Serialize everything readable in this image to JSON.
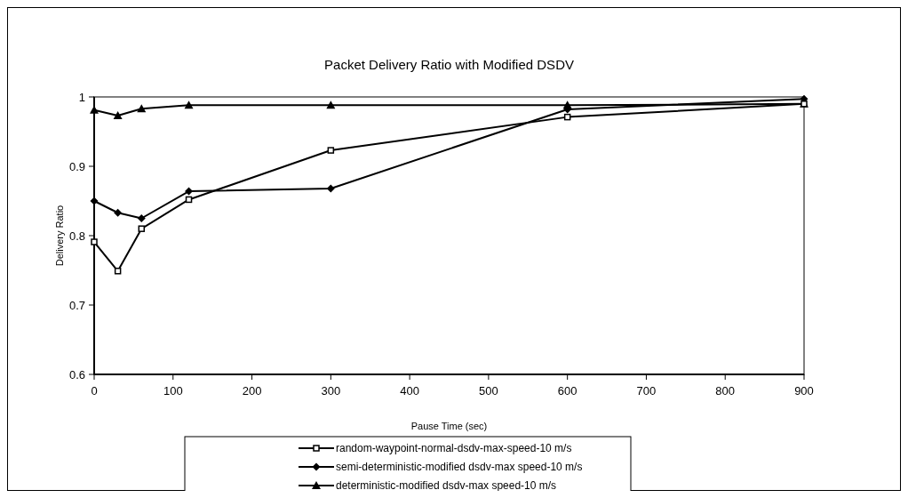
{
  "chart_data": {
    "type": "line",
    "title": "Packet Delivery Ratio with Modified DSDV",
    "xlabel": "Pause Time (sec)",
    "ylabel": "Delivery Ratio",
    "x": [
      0,
      30,
      60,
      120,
      300,
      600,
      900
    ],
    "series": [
      {
        "name": "random-waypoint-normal-dsdv-max-speed-10 m/s",
        "color": "#000000",
        "marker": "square",
        "values": [
          0.791,
          0.749,
          0.81,
          0.852,
          0.923,
          0.971,
          0.99
        ]
      },
      {
        "name": "semi-deterministic-modified dsdv-max speed-10 m/s",
        "color": "#000000",
        "marker": "diamond",
        "values": [
          0.85,
          0.833,
          0.825,
          0.864,
          0.868,
          0.982,
          0.997
        ]
      },
      {
        "name": "deterministic-modified dsdv-max speed-10 m/s",
        "color": "#000000",
        "marker": "triangle",
        "values": [
          0.981,
          0.973,
          0.983,
          0.988,
          0.988,
          0.988,
          0.99
        ]
      }
    ],
    "xlim": [
      0,
      900
    ],
    "xticks": [
      0,
      100,
      200,
      300,
      400,
      500,
      600,
      700,
      800,
      900
    ],
    "ylim": [
      0.6,
      1
    ],
    "yticks": [
      0.6,
      0.7,
      0.8,
      0.9,
      1
    ],
    "grid": false,
    "legend": "bottom",
    "line_style": "solid"
  }
}
